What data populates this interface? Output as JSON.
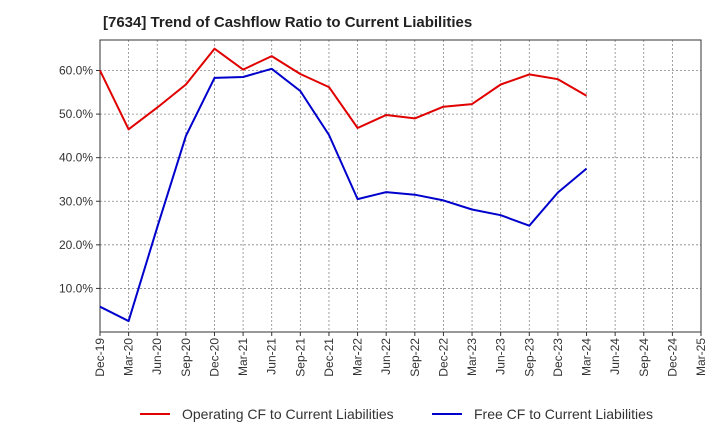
{
  "chart_data": {
    "type": "line",
    "title": "[7634]  Trend of Cashflow Ratio to Current Liabilities",
    "xlabel": "",
    "ylabel": "",
    "ylim": [
      0,
      67
    ],
    "y_ticks": [
      "10.0%",
      "20.0%",
      "30.0%",
      "40.0%",
      "50.0%",
      "60.0%"
    ],
    "y_tick_values": [
      10,
      20,
      30,
      40,
      50,
      60
    ],
    "grid": true,
    "legend_position": "bottom",
    "categories": [
      "Dec-19",
      "Mar-20",
      "Jun-20",
      "Sep-20",
      "Dec-20",
      "Mar-21",
      "Jun-21",
      "Sep-21",
      "Dec-21",
      "Mar-22",
      "Jun-22",
      "Sep-22",
      "Dec-22",
      "Mar-23",
      "Jun-23",
      "Sep-23",
      "Dec-23",
      "Mar-24",
      "Jun-24",
      "Sep-24",
      "Dec-24",
      "Mar-25"
    ],
    "series": [
      {
        "name": "Operating CF to Current Liabilities",
        "color": "#e00000",
        "values": [
          60.0,
          46.5,
          51.5,
          56.8,
          65.0,
          60.2,
          63.3,
          59.2,
          56.2,
          46.8,
          49.8,
          49.0,
          51.7,
          52.3,
          56.8,
          59.1,
          58.0,
          54.2,
          null,
          null,
          null,
          null
        ]
      },
      {
        "name": "Free CF to Current Liabilities",
        "color": "#0000cc",
        "values": [
          5.8,
          2.5,
          24.0,
          45.0,
          58.3,
          58.5,
          60.4,
          55.3,
          45.2,
          30.5,
          32.1,
          31.5,
          30.2,
          28.1,
          26.8,
          24.4,
          32.0,
          37.5,
          null,
          null,
          null,
          null
        ]
      }
    ]
  }
}
